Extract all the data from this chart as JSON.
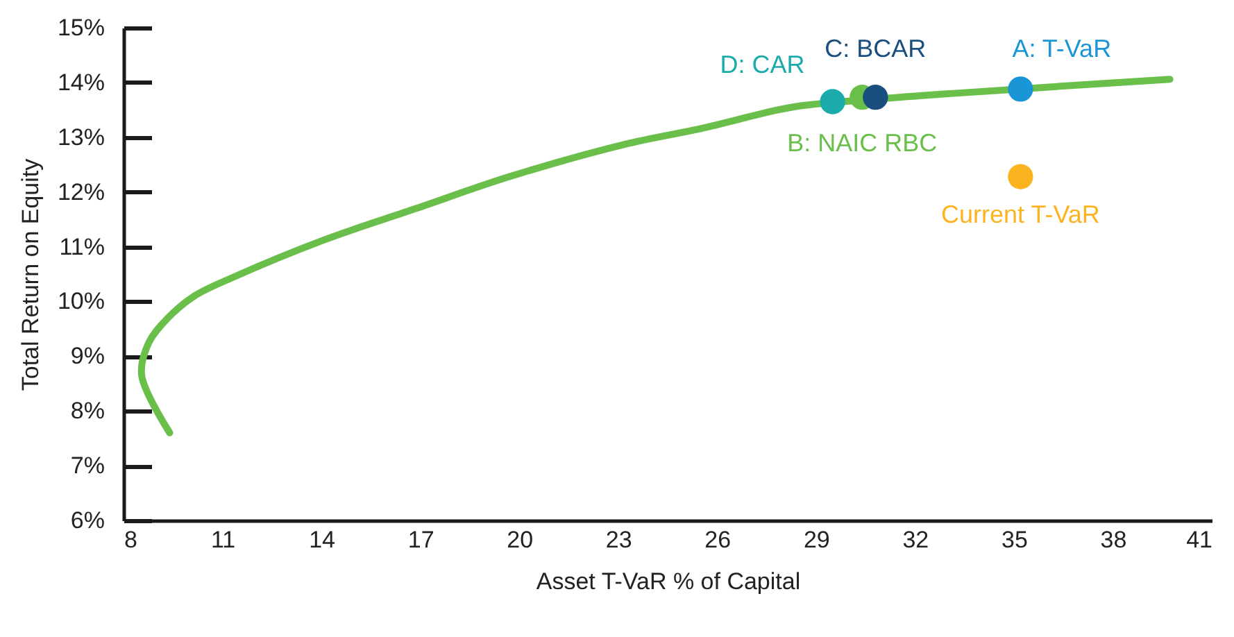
{
  "chart_data": {
    "type": "line",
    "xlabel": "Asset T-VaR % of Capital",
    "ylabel": "Total Return on Equity",
    "xlim": [
      8,
      41
    ],
    "xticks": [
      8,
      11,
      14,
      17,
      20,
      23,
      26,
      29,
      32,
      35,
      38,
      41
    ],
    "ylim": [
      6,
      15
    ],
    "yticks": [
      {
        "value": 6,
        "label": "6%"
      },
      {
        "value": 7,
        "label": "7%"
      },
      {
        "value": 8,
        "label": "8%"
      },
      {
        "value": 9,
        "label": "9%"
      },
      {
        "value": 10,
        "label": "10%"
      },
      {
        "value": 11,
        "label": "11%"
      },
      {
        "value": 12,
        "label": "12%"
      },
      {
        "value": 13,
        "label": "13%"
      },
      {
        "value": 14,
        "label": "14%"
      },
      {
        "value": 15,
        "label": "15%"
      }
    ],
    "grid": false,
    "marker": "circle",
    "series": [
      {
        "color": "#6abf4b",
        "marker": "none",
        "x": [
          9.4,
          8.55,
          8.76,
          9.3,
          10.15,
          11.28,
          14.06,
          16.88,
          19.7,
          23.19,
          25.59,
          27.7,
          28.6,
          32.2,
          33.4,
          37.4,
          39.73
        ],
        "values": [
          7.6,
          8.65,
          9.24,
          9.67,
          10.1,
          10.43,
          11.12,
          11.7,
          12.28,
          12.87,
          13.17,
          13.48,
          13.58,
          13.76,
          13.81,
          13.97,
          14.06
        ]
      },
      {
        "type": "scatter",
        "name": "D: CAR",
        "color": "#1aabaa",
        "x": [
          29.5
        ],
        "values": [
          13.65
        ]
      },
      {
        "type": "scatter",
        "name": "B: NAIC RBC",
        "color": "#6abf4b",
        "x": [
          30.4
        ],
        "values": [
          13.73
        ]
      },
      {
        "type": "scatter",
        "name": "C: BCAR",
        "color": "#1a4e7f",
        "x": [
          30.8
        ],
        "values": [
          13.73
        ]
      },
      {
        "type": "scatter",
        "name": "A: T-VaR",
        "color": "#1a95d5",
        "x": [
          35.2
        ],
        "values": [
          13.88
        ]
      },
      {
        "type": "scatter",
        "name": "Current T-VaR",
        "color": "#fbb41f",
        "x": [
          35.2
        ],
        "values": [
          12.28
        ]
      }
    ]
  }
}
